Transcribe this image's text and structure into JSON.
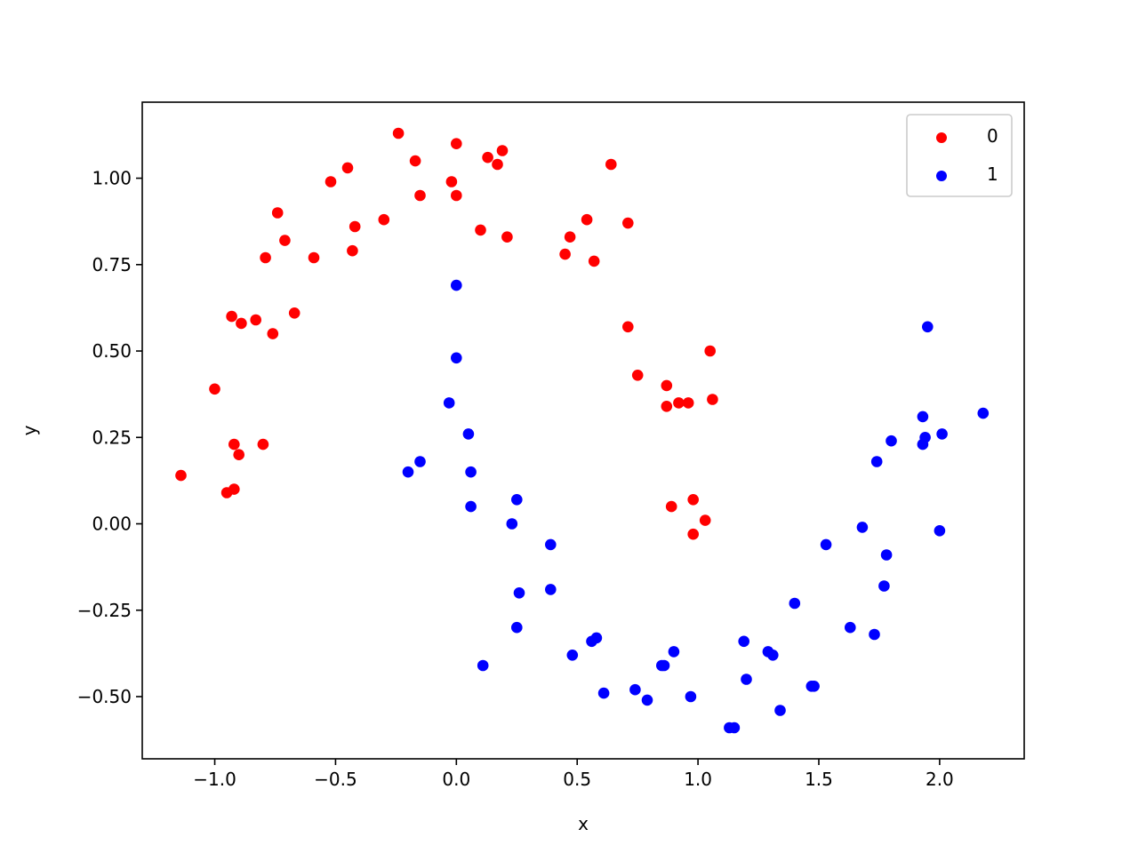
{
  "chart_data": {
    "type": "scatter",
    "xlabel": "x",
    "ylabel": "y",
    "xlim": [
      -1.3,
      2.35
    ],
    "ylim": [
      -0.68,
      1.22
    ],
    "xticks": [
      -1.0,
      -0.5,
      0.0,
      0.5,
      1.0,
      1.5,
      2.0
    ],
    "xtick_labels": [
      "−1.0",
      "−0.5",
      "0.0",
      "0.5",
      "1.0",
      "1.5",
      "2.0"
    ],
    "yticks": [
      -0.5,
      -0.25,
      0.0,
      0.25,
      0.5,
      0.75,
      1.0
    ],
    "ytick_labels": [
      "−0.50",
      "−0.25",
      "0.00",
      "0.25",
      "0.50",
      "0.75",
      "1.00"
    ],
    "grid": false,
    "legend_position": "top-right",
    "series": [
      {
        "name": "0",
        "color": "#ff0000",
        "points": [
          [
            -1.14,
            0.14
          ],
          [
            -1.0,
            0.39
          ],
          [
            -0.95,
            0.09
          ],
          [
            -0.92,
            0.1
          ],
          [
            -0.92,
            0.23
          ],
          [
            -0.9,
            0.2
          ],
          [
            -0.93,
            0.6
          ],
          [
            -0.89,
            0.58
          ],
          [
            -0.83,
            0.59
          ],
          [
            -0.8,
            0.23
          ],
          [
            -0.76,
            0.55
          ],
          [
            -0.79,
            0.77
          ],
          [
            -0.74,
            0.9
          ],
          [
            -0.71,
            0.82
          ],
          [
            -0.67,
            0.61
          ],
          [
            -0.59,
            0.77
          ],
          [
            -0.52,
            0.99
          ],
          [
            -0.45,
            1.03
          ],
          [
            -0.43,
            0.79
          ],
          [
            -0.42,
            0.86
          ],
          [
            -0.3,
            0.88
          ],
          [
            -0.24,
            1.13
          ],
          [
            -0.17,
            1.05
          ],
          [
            -0.15,
            0.95
          ],
          [
            -0.02,
            0.99
          ],
          [
            0.0,
            0.95
          ],
          [
            0.0,
            1.1
          ],
          [
            0.1,
            0.85
          ],
          [
            0.13,
            1.06
          ],
          [
            0.17,
            1.04
          ],
          [
            0.19,
            1.08
          ],
          [
            0.21,
            0.83
          ],
          [
            0.45,
            0.78
          ],
          [
            0.47,
            0.83
          ],
          [
            0.54,
            0.88
          ],
          [
            0.57,
            0.76
          ],
          [
            0.64,
            1.04
          ],
          [
            0.71,
            0.87
          ],
          [
            0.71,
            0.57
          ],
          [
            0.75,
            0.43
          ],
          [
            0.87,
            0.4
          ],
          [
            0.87,
            0.34
          ],
          [
            0.92,
            0.35
          ],
          [
            0.96,
            0.35
          ],
          [
            1.05,
            0.5
          ],
          [
            1.06,
            0.36
          ],
          [
            0.98,
            0.07
          ],
          [
            0.89,
            0.05
          ],
          [
            1.03,
            0.01
          ],
          [
            0.98,
            -0.03
          ]
        ]
      },
      {
        "name": "1",
        "color": "#0000ff",
        "points": [
          [
            0.0,
            0.69
          ],
          [
            0.0,
            0.48
          ],
          [
            -0.03,
            0.35
          ],
          [
            0.05,
            0.26
          ],
          [
            -0.2,
            0.15
          ],
          [
            -0.15,
            0.18
          ],
          [
            0.06,
            0.15
          ],
          [
            0.06,
            0.05
          ],
          [
            0.25,
            0.07
          ],
          [
            0.23,
            0.0
          ],
          [
            0.39,
            -0.06
          ],
          [
            0.26,
            -0.2
          ],
          [
            0.39,
            -0.19
          ],
          [
            0.25,
            -0.3
          ],
          [
            0.11,
            -0.41
          ],
          [
            0.48,
            -0.38
          ],
          [
            0.56,
            -0.34
          ],
          [
            0.58,
            -0.33
          ],
          [
            0.61,
            -0.49
          ],
          [
            0.74,
            -0.48
          ],
          [
            0.79,
            -0.51
          ],
          [
            0.85,
            -0.41
          ],
          [
            0.86,
            -0.41
          ],
          [
            0.9,
            -0.37
          ],
          [
            0.97,
            -0.5
          ],
          [
            1.19,
            -0.34
          ],
          [
            1.2,
            -0.45
          ],
          [
            1.13,
            -0.59
          ],
          [
            1.15,
            -0.59
          ],
          [
            1.29,
            -0.37
          ],
          [
            1.31,
            -0.38
          ],
          [
            1.34,
            -0.54
          ],
          [
            1.4,
            -0.23
          ],
          [
            1.47,
            -0.47
          ],
          [
            1.48,
            -0.47
          ],
          [
            1.53,
            -0.06
          ],
          [
            1.63,
            -0.3
          ],
          [
            1.68,
            -0.01
          ],
          [
            1.73,
            -0.32
          ],
          [
            1.74,
            0.18
          ],
          [
            1.77,
            -0.18
          ],
          [
            1.78,
            -0.09
          ],
          [
            1.8,
            0.24
          ],
          [
            1.93,
            0.31
          ],
          [
            1.93,
            0.23
          ],
          [
            1.94,
            0.25
          ],
          [
            1.95,
            0.57
          ],
          [
            2.0,
            -0.02
          ],
          [
            2.01,
            0.26
          ],
          [
            2.18,
            0.32
          ]
        ]
      }
    ]
  }
}
